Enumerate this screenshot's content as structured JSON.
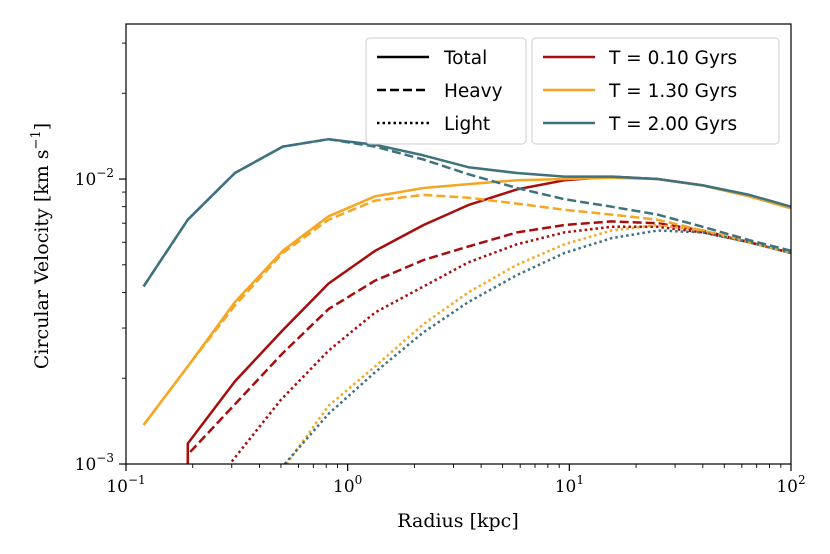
{
  "chart_data": {
    "type": "line",
    "xlabel": "Radius [kpc]",
    "ylabel": "Circular Velocity [km s",
    "ylabel_sup": "−1",
    "ylabel_close": "]",
    "xscale": "log",
    "yscale": "log",
    "xlim": [
      0.1,
      100
    ],
    "ylim": [
      0.001,
      0.035
    ],
    "grid": false,
    "x_ticks": [
      {
        "value": 0.1,
        "base": "10",
        "exp": "−1"
      },
      {
        "value": 1,
        "base": "10",
        "exp": "0"
      },
      {
        "value": 10,
        "base": "10",
        "exp": "1"
      },
      {
        "value": 100,
        "base": "10",
        "exp": "2"
      }
    ],
    "y_ticks": [
      {
        "value": 0.001,
        "base": "10",
        "exp": "−3"
      },
      {
        "value": 0.01,
        "base": "10",
        "exp": "−2"
      }
    ],
    "legend_styles": {
      "placement": "top-right",
      "entries": [
        {
          "label": "Total",
          "dash": "solid"
        },
        {
          "label": "Heavy",
          "dash": "dashed"
        },
        {
          "label": "Light",
          "dash": "dotted"
        }
      ]
    },
    "series": [
      {
        "name": "T = 0.10 Gyrs",
        "color": "#a80d0d",
        "total": {
          "x": [
            0.19,
            0.19,
            0.31,
            0.51,
            0.82,
            1.33,
            2.2,
            3.5,
            5.8,
            9.5,
            15.5,
            25,
            40,
            65,
            100
          ],
          "y": [
            0.001,
            0.00118,
            0.00195,
            0.00295,
            0.0043,
            0.0056,
            0.0069,
            0.0081,
            0.0092,
            0.0099,
            0.0102,
            0.01,
            0.0095,
            0.0087,
            0.0079
          ]
        },
        "heavy": {
          "x": [
            0.19,
            0.19,
            0.31,
            0.51,
            0.82,
            1.33,
            2.2,
            3.5,
            5.8,
            9.5,
            15.5,
            25,
            40,
            65,
            100
          ],
          "y": [
            0.001,
            0.00108,
            0.00162,
            0.00245,
            0.0035,
            0.0044,
            0.0052,
            0.0058,
            0.0065,
            0.0069,
            0.0071,
            0.007,
            0.0066,
            0.006,
            0.0055
          ]
        },
        "light": {
          "x": [
            0.3,
            0.5,
            0.82,
            1.33,
            2.2,
            3.5,
            5.8,
            9.5,
            15.5,
            25,
            40,
            65,
            100
          ],
          "y": [
            0.00102,
            0.00168,
            0.0025,
            0.0034,
            0.0042,
            0.0051,
            0.0059,
            0.0065,
            0.0068,
            0.0068,
            0.0065,
            0.006,
            0.0055
          ]
        }
      },
      {
        "name": "T = 1.30 Gyrs",
        "color": "#f5a623",
        "total": {
          "x": [
            0.12,
            0.19,
            0.31,
            0.51,
            0.82,
            1.33,
            2.2,
            3.5,
            5.8,
            9.5,
            15.5,
            25,
            40,
            65,
            100
          ],
          "y": [
            0.00137,
            0.0022,
            0.0037,
            0.0056,
            0.0074,
            0.0087,
            0.0093,
            0.0096,
            0.0099,
            0.01,
            0.0101,
            0.01,
            0.0095,
            0.0087,
            0.0079
          ]
        },
        "heavy": {
          "x": [
            0.12,
            0.19,
            0.31,
            0.51,
            0.82,
            1.33,
            2.2,
            3.5,
            5.8,
            9.5,
            15.5,
            25,
            40,
            65,
            100
          ],
          "y": [
            0.00137,
            0.0022,
            0.0036,
            0.0055,
            0.0072,
            0.0084,
            0.0088,
            0.0086,
            0.0082,
            0.0078,
            0.0075,
            0.0072,
            0.0066,
            0.006,
            0.0055
          ]
        },
        "light": {
          "x": [
            0.53,
            0.82,
            1.33,
            2.2,
            3.5,
            5.8,
            9.5,
            15.5,
            25,
            40,
            65,
            100
          ],
          "y": [
            0.001,
            0.0016,
            0.0022,
            0.0031,
            0.004,
            0.005,
            0.0059,
            0.0066,
            0.0069,
            0.0066,
            0.006,
            0.0055
          ]
        }
      },
      {
        "name": "T = 2.00 Gyrs",
        "color": "#3d727e",
        "total": {
          "x": [
            0.12,
            0.19,
            0.31,
            0.51,
            0.82,
            1.33,
            2.2,
            3.5,
            5.8,
            9.5,
            15.5,
            25,
            40,
            65,
            100
          ],
          "y": [
            0.0042,
            0.0072,
            0.0105,
            0.013,
            0.0138,
            0.0132,
            0.0121,
            0.011,
            0.0105,
            0.0102,
            0.0102,
            0.01,
            0.0095,
            0.0088,
            0.008
          ]
        },
        "heavy": {
          "x": [
            0.12,
            0.19,
            0.31,
            0.51,
            0.82,
            1.33,
            2.2,
            3.5,
            5.8,
            9.5,
            15.5,
            25,
            40,
            65,
            100
          ],
          "y": [
            0.0042,
            0.0072,
            0.0105,
            0.013,
            0.0138,
            0.013,
            0.0117,
            0.0104,
            0.0093,
            0.0085,
            0.008,
            0.0075,
            0.0068,
            0.0061,
            0.0056
          ]
        },
        "light": {
          "x": [
            0.52,
            0.82,
            1.33,
            2.2,
            3.5,
            5.8,
            9.5,
            15.5,
            25,
            40,
            65,
            100
          ],
          "y": [
            0.001,
            0.0015,
            0.0021,
            0.0029,
            0.0037,
            0.0046,
            0.0055,
            0.0062,
            0.0066,
            0.0065,
            0.006,
            0.0055
          ]
        }
      }
    ]
  }
}
